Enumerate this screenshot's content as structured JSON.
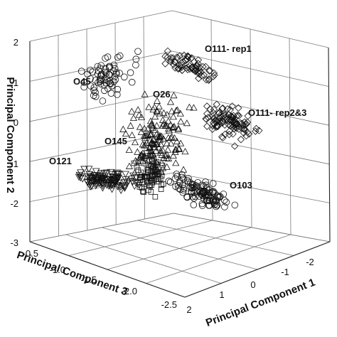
{
  "chart_data": {
    "type": "scatter",
    "projection": "3d",
    "grid": true,
    "axes": {
      "x": {
        "label": "Principal Component 1",
        "range": [
          -2,
          2
        ],
        "ticks": [
          "-2",
          "-1",
          "0",
          "1",
          "2"
        ]
      },
      "y": {
        "label": "Principal Component 3",
        "range": [
          -2.5,
          -0.5
        ],
        "ticks": [
          "-0.5",
          "-1.0",
          "-1.5",
          "-2.0",
          "-2.5"
        ]
      },
      "z": {
        "label": "Principal Component 2",
        "range": [
          -3,
          2
        ],
        "ticks": [
          "2",
          "1",
          "0",
          "-1",
          "-2",
          "-3"
        ]
      }
    },
    "clusters": [
      {
        "label": "O45",
        "marker": "circle",
        "points": 70
      },
      {
        "label": "O111- rep1",
        "marker": "diamond",
        "points": 70
      },
      {
        "label": "O26",
        "marker": "triangle",
        "points": 150
      },
      {
        "label": "O111- rep2&3",
        "marker": "diamond",
        "points": 110
      },
      {
        "label": "O145",
        "marker": "square",
        "points": 90
      },
      {
        "label": "O121",
        "marker": "triangle-down",
        "points": 120
      },
      {
        "label": "O103",
        "marker": "circle",
        "points": 110
      }
    ]
  }
}
